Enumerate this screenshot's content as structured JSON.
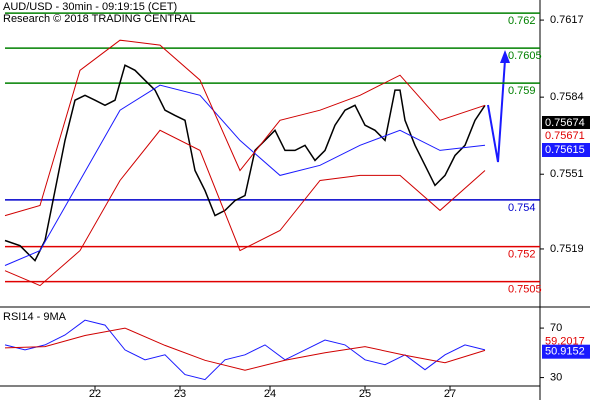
{
  "chart_data": [
    {
      "type": "line",
      "title": "AUD/USD - 30min - 09:19:15 (CET)",
      "subtitle": "Research © 2018 TRADING CENTRAL",
      "xlim": [
        0,
        108
      ],
      "ylim": [
        0.7495,
        0.76256
      ],
      "yticks": [
        0.7617,
        0.7584,
        0.7551,
        0.7519
      ],
      "series": [
        {
          "name": "price",
          "color": "#000000",
          "x": [
            1,
            4,
            7,
            9,
            11,
            13,
            15,
            17,
            19,
            21,
            23,
            25,
            27,
            29,
            31,
            33,
            35,
            37,
            39,
            41,
            43,
            45,
            47,
            49,
            51,
            53,
            55,
            57,
            59,
            61,
            63,
            65,
            67,
            69,
            71,
            73,
            75,
            77,
            79,
            80,
            81,
            83,
            85,
            87,
            89,
            91,
            93,
            95,
            97
          ],
          "values": [
            0.75226,
            0.75204,
            0.7514,
            0.75226,
            0.7544,
            0.75655,
            0.75827,
            0.75848,
            0.75827,
            0.75805,
            0.75827,
            0.75977,
            0.75955,
            0.75912,
            0.7587,
            0.75784,
            0.75762,
            0.75741,
            0.75526,
            0.7544,
            0.75333,
            0.75355,
            0.75397,
            0.75419,
            0.75612,
            0.75655,
            0.75698,
            0.75612,
            0.75612,
            0.75634,
            0.75569,
            0.75612,
            0.7572,
            0.75784,
            0.75805,
            0.7572,
            0.75698,
            0.75655,
            0.7587,
            0.7587,
            0.75741,
            0.75634,
            0.75548,
            0.75462,
            0.75505,
            0.7559,
            0.75634,
            0.75741,
            0.75805
          ]
        },
        {
          "name": "moving-average",
          "color": "#1a1aff",
          "x": [
            1,
            8,
            16,
            24,
            32,
            40,
            48,
            56,
            64,
            72,
            80,
            88,
            97
          ],
          "values": [
            0.75119,
            0.75183,
            0.75483,
            0.75784,
            0.75891,
            0.75848,
            0.75655,
            0.75505,
            0.75548,
            0.75634,
            0.75698,
            0.75612,
            0.75634
          ]
        },
        {
          "name": "upper-band",
          "color": "#d00000",
          "x": [
            1,
            8,
            16,
            24,
            32,
            40,
            48,
            56,
            64,
            72,
            80,
            88,
            97
          ],
          "values": [
            0.75333,
            0.75376,
            0.75955,
            0.76084,
            0.76063,
            0.75913,
            0.75526,
            0.75741,
            0.75784,
            0.75848,
            0.75934,
            0.75741,
            0.75805
          ]
        },
        {
          "name": "lower-band",
          "color": "#d00000",
          "x": [
            1,
            8,
            16,
            24,
            32,
            40,
            48,
            56,
            64,
            72,
            80,
            88,
            97
          ],
          "values": [
            0.75097,
            0.75033,
            0.75183,
            0.75483,
            0.75698,
            0.75612,
            0.75183,
            0.75269,
            0.75483,
            0.75505,
            0.75505,
            0.75355,
            0.75526
          ]
        }
      ],
      "levels": [
        {
          "value": 0.762,
          "color": "#008000"
        },
        {
          "value": 0.7605,
          "color": "#008000"
        },
        {
          "value": 0.759,
          "color": "#008000"
        },
        {
          "value": 0.754,
          "color": "#0000cc"
        },
        {
          "value": 0.752,
          "color": "#e00000"
        },
        {
          "value": 0.7505,
          "color": "#e00000"
        }
      ],
      "price_tags": [
        {
          "value": 0.75674,
          "color": "#000000"
        },
        {
          "value": 0.75671,
          "color": "#e00000"
        },
        {
          "value": 0.75615,
          "color": "#1a1aff"
        }
      ]
    },
    {
      "type": "line",
      "title": "RSI14 - 9MA",
      "xlim": [
        0,
        108
      ],
      "ylim": [
        24,
        83
      ],
      "yticks": [
        70,
        30
      ],
      "xticks": [
        {
          "value": 19,
          "label": "22"
        },
        {
          "value": 36,
          "label": "23"
        },
        {
          "value": 54,
          "label": "24"
        },
        {
          "value": 73,
          "label": "25"
        },
        {
          "value": 90,
          "label": "27"
        }
      ],
      "series": [
        {
          "name": "RSI14",
          "color": "#1a1aff",
          "x": [
            1,
            5,
            9,
            13,
            17,
            21,
            25,
            29,
            33,
            37,
            41,
            45,
            49,
            53,
            57,
            61,
            65,
            69,
            73,
            77,
            81,
            85,
            89,
            93,
            97
          ],
          "values": [
            56.4,
            52.4,
            56.4,
            64.4,
            76.4,
            72.4,
            52.4,
            44.4,
            48.4,
            32.4,
            28.4,
            44.4,
            48.4,
            56.4,
            44.4,
            52.4,
            60.4,
            56.4,
            44.4,
            40.4,
            48.4,
            36.4,
            48.4,
            56.4,
            52.4
          ]
        },
        {
          "name": "9MA",
          "color": "#d00000",
          "x": [
            1,
            9,
            17,
            25,
            33,
            41,
            49,
            57,
            65,
            73,
            81,
            89,
            97
          ],
          "values": [
            54,
            55,
            64,
            70,
            56,
            44,
            36,
            44,
            50,
            55,
            48,
            42,
            52
          ]
        }
      ],
      "price_tags": [
        {
          "value": 59.2017,
          "color": "#e00000"
        },
        {
          "value": 50.9152,
          "color": "#1a1aff"
        }
      ]
    }
  ]
}
